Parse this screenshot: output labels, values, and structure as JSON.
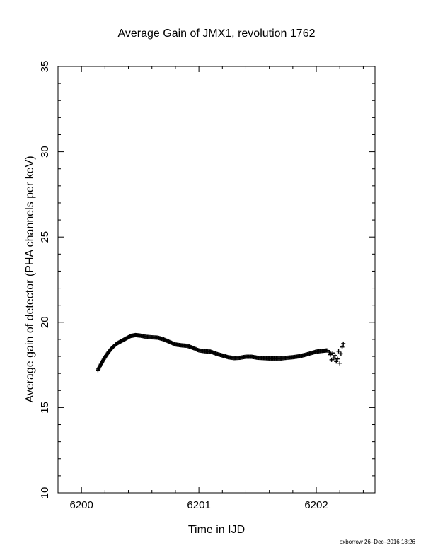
{
  "chart_data": {
    "type": "scatter",
    "title": "Average Gain of JMX1, revolution 1762",
    "xlabel": "Time in IJD",
    "ylabel": "Average gain of detector (PHA channels per keV)",
    "xlim": [
      6199.8,
      6202.5
    ],
    "ylim": [
      10,
      35
    ],
    "xticks": [
      6200,
      6201,
      6202
    ],
    "yticks": [
      10,
      15,
      20,
      25,
      30,
      35
    ],
    "grid": false,
    "marker": "plus",
    "series": [
      {
        "values_xy": [
          [
            6200.14,
            17.2
          ],
          [
            6200.17,
            17.6
          ],
          [
            6200.2,
            17.95
          ],
          [
            6200.23,
            18.25
          ],
          [
            6200.26,
            18.5
          ],
          [
            6200.3,
            18.75
          ],
          [
            6200.34,
            18.9
          ],
          [
            6200.38,
            19.05
          ],
          [
            6200.42,
            19.2
          ],
          [
            6200.46,
            19.25
          ],
          [
            6200.5,
            19.22
          ],
          [
            6200.55,
            19.15
          ],
          [
            6200.6,
            19.12
          ],
          [
            6200.65,
            19.1
          ],
          [
            6200.7,
            19.0
          ],
          [
            6200.75,
            18.85
          ],
          [
            6200.8,
            18.7
          ],
          [
            6200.85,
            18.65
          ],
          [
            6200.9,
            18.62
          ],
          [
            6200.95,
            18.5
          ],
          [
            6201.0,
            18.35
          ],
          [
            6201.05,
            18.3
          ],
          [
            6201.1,
            18.28
          ],
          [
            6201.15,
            18.15
          ],
          [
            6201.2,
            18.05
          ],
          [
            6201.25,
            17.95
          ],
          [
            6201.3,
            17.9
          ],
          [
            6201.35,
            17.92
          ],
          [
            6201.4,
            17.98
          ],
          [
            6201.45,
            17.98
          ],
          [
            6201.5,
            17.92
          ],
          [
            6201.55,
            17.9
          ],
          [
            6201.6,
            17.88
          ],
          [
            6201.65,
            17.88
          ],
          [
            6201.7,
            17.88
          ],
          [
            6201.75,
            17.92
          ],
          [
            6201.8,
            17.95
          ],
          [
            6201.85,
            18.0
          ],
          [
            6201.9,
            18.08
          ],
          [
            6201.95,
            18.18
          ],
          [
            6202.0,
            18.28
          ],
          [
            6202.05,
            18.32
          ],
          [
            6202.09,
            18.35
          ],
          [
            6202.11,
            18.25
          ],
          [
            6202.12,
            18.1
          ],
          [
            6202.13,
            17.8
          ],
          [
            6202.14,
            18.2
          ],
          [
            6202.15,
            17.9
          ],
          [
            6202.16,
            18.05
          ],
          [
            6202.17,
            17.7
          ],
          [
            6202.18,
            17.85
          ],
          [
            6202.19,
            18.3
          ],
          [
            6202.2,
            17.6
          ],
          [
            6202.21,
            18.15
          ],
          [
            6202.22,
            18.55
          ],
          [
            6202.23,
            18.75
          ]
        ]
      }
    ]
  },
  "footer": {
    "stamp": "oxborrow 26–Dec–2016 18:26"
  }
}
